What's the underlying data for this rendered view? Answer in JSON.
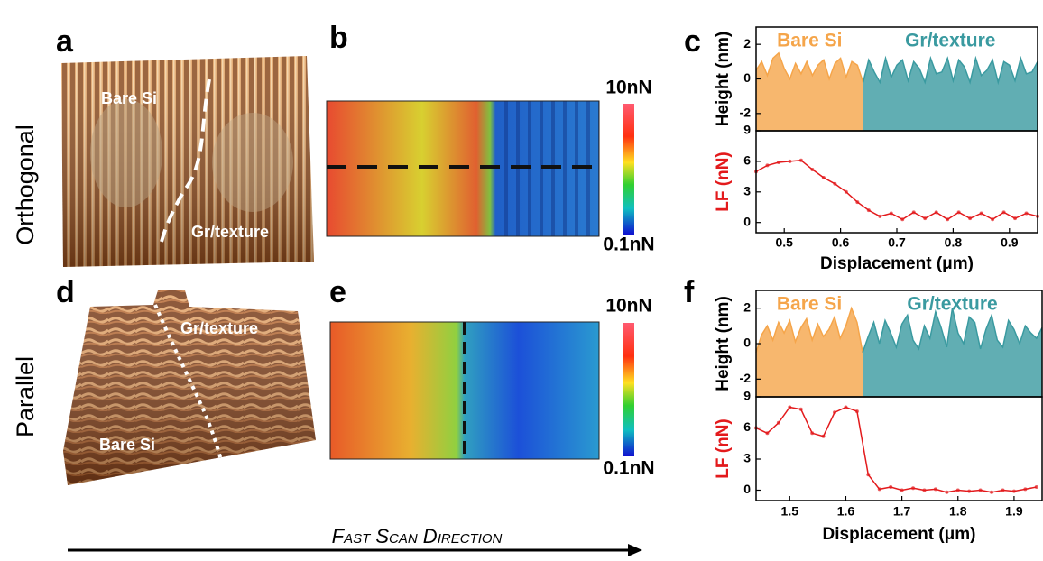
{
  "panel_labels": [
    "a",
    "b",
    "c",
    "d",
    "e",
    "f"
  ],
  "row_labels": [
    "Orthogonal",
    "Parallel"
  ],
  "images": [
    {
      "labels": [
        "Bare Si",
        "Gr/texture"
      ]
    },
    {
      "labels": [
        "Gr/texture",
        "Bare Si"
      ]
    }
  ],
  "force_maps": [
    {
      "max_label": "10nN",
      "min_label": "0.1nN"
    },
    {
      "max_label": "10nN",
      "min_label": "0.1nN"
    }
  ],
  "scan_direction": "Fast Scan Direction",
  "chart_data": [
    {
      "type": "area",
      "ylabel": "Height (nm)",
      "label_color": "#000000",
      "xlim": [
        0.45,
        0.95
      ],
      "ylim": [
        -3,
        3
      ],
      "yticks": [
        -2,
        0,
        2
      ],
      "series": [
        {
          "name": "Bare Si",
          "color": "#f5a54a",
          "x": [
            0.45,
            0.46,
            0.47,
            0.48,
            0.49,
            0.5,
            0.51,
            0.52,
            0.53,
            0.54,
            0.55,
            0.56,
            0.57,
            0.58,
            0.59,
            0.6,
            0.61,
            0.62,
            0.63,
            0.64
          ],
          "values": [
            0.5,
            1.0,
            0.2,
            1.2,
            1.5,
            0.6,
            0.0,
            0.9,
            0.3,
            1.0,
            0.2,
            0.8,
            1.1,
            0.0,
            0.9,
            1.2,
            0.1,
            1.0,
            0.8,
            -0.2
          ]
        },
        {
          "name": "Gr/texture",
          "color": "#3a9aa0",
          "x": [
            0.64,
            0.65,
            0.66,
            0.67,
            0.68,
            0.69,
            0.7,
            0.71,
            0.72,
            0.73,
            0.74,
            0.75,
            0.76,
            0.77,
            0.78,
            0.79,
            0.8,
            0.81,
            0.82,
            0.83,
            0.84,
            0.85,
            0.86,
            0.87,
            0.88,
            0.89,
            0.9,
            0.91,
            0.92,
            0.93,
            0.94,
            0.95
          ],
          "values": [
            -0.2,
            1.1,
            0.4,
            -0.2,
            1.2,
            0.1,
            0.8,
            1.1,
            -0.1,
            1.0,
            0.6,
            -0.2,
            1.2,
            0.3,
            0.4,
            1.2,
            -0.1,
            1.1,
            0.7,
            -0.2,
            1.2,
            0.2,
            0.5,
            1.1,
            -0.2,
            1.0,
            0.8,
            -0.1,
            1.2,
            0.3,
            0.4,
            1.0
          ]
        }
      ]
    },
    {
      "type": "line",
      "ylabel": "LF (nN)",
      "label_color": "#e31a1c",
      "xlabel": "Displacement (μm)",
      "color": "#e31a1c",
      "xlim": [
        0.45,
        0.95
      ],
      "xticks": [
        0.5,
        0.6,
        0.7,
        0.8,
        0.9
      ],
      "ylim": [
        -1,
        9
      ],
      "yticks": [
        0,
        3,
        6,
        9
      ],
      "x": [
        0.45,
        0.47,
        0.49,
        0.51,
        0.53,
        0.55,
        0.57,
        0.59,
        0.61,
        0.63,
        0.65,
        0.67,
        0.69,
        0.71,
        0.73,
        0.75,
        0.77,
        0.79,
        0.81,
        0.83,
        0.85,
        0.87,
        0.89,
        0.91,
        0.93,
        0.95
      ],
      "values": [
        5,
        5.6,
        5.9,
        6,
        6.1,
        5.2,
        4.4,
        3.8,
        3,
        2,
        1.2,
        0.6,
        0.9,
        0.3,
        1,
        0.4,
        1,
        0.3,
        1,
        0.4,
        0.9,
        0.3,
        1,
        0.4,
        0.9,
        0.6
      ]
    },
    {
      "type": "area",
      "ylabel": "Height (nm)",
      "label_color": "#000000",
      "xlim": [
        1.44,
        1.95
      ],
      "ylim": [
        -3,
        3
      ],
      "yticks": [
        -2,
        0,
        2
      ],
      "series": [
        {
          "name": "Bare Si",
          "color": "#f5a54a",
          "x": [
            1.44,
            1.45,
            1.46,
            1.47,
            1.48,
            1.49,
            1.5,
            1.51,
            1.52,
            1.53,
            1.54,
            1.55,
            1.56,
            1.57,
            1.58,
            1.59,
            1.6,
            1.61,
            1.62,
            1.63
          ],
          "values": [
            -0.5,
            0.5,
            1.0,
            0.2,
            1.2,
            0.6,
            1.3,
            0.1,
            0.9,
            1.4,
            0.2,
            1.1,
            0.4,
            0.8,
            1.5,
            0.3,
            1.0,
            2.0,
            1.2,
            -0.5
          ]
        },
        {
          "name": "Gr/texture",
          "color": "#3a9aa0",
          "x": [
            1.63,
            1.64,
            1.65,
            1.66,
            1.67,
            1.68,
            1.69,
            1.7,
            1.71,
            1.72,
            1.73,
            1.74,
            1.75,
            1.76,
            1.77,
            1.78,
            1.79,
            1.8,
            1.81,
            1.82,
            1.83,
            1.84,
            1.85,
            1.86,
            1.87,
            1.88,
            1.89,
            1.9,
            1.91,
            1.92,
            1.93,
            1.94,
            1.95
          ],
          "values": [
            -0.5,
            0.4,
            1.2,
            0.0,
            1.3,
            0.6,
            -0.2,
            1.1,
            1.6,
            0.2,
            -0.3,
            1.0,
            0.3,
            1.8,
            0.9,
            -0.2,
            2.0,
            0.6,
            0.0,
            1.5,
            1.2,
            -0.3,
            0.8,
            1.6,
            0.2,
            -0.2,
            1.3,
            0.8,
            0.0,
            1.0,
            0.6,
            0.3,
            0.9
          ]
        }
      ]
    },
    {
      "type": "line",
      "ylabel": "LF (nN)",
      "label_color": "#e31a1c",
      "xlabel": "Displacement (μm)",
      "color": "#e31a1c",
      "xlim": [
        1.44,
        1.95
      ],
      "xticks": [
        1.5,
        1.6,
        1.7,
        1.8,
        1.9
      ],
      "ylim": [
        -1,
        9
      ],
      "yticks": [
        0,
        3,
        6,
        9
      ],
      "x": [
        1.44,
        1.46,
        1.48,
        1.5,
        1.52,
        1.54,
        1.56,
        1.58,
        1.6,
        1.62,
        1.64,
        1.66,
        1.68,
        1.7,
        1.72,
        1.74,
        1.76,
        1.78,
        1.8,
        1.82,
        1.84,
        1.86,
        1.88,
        1.9,
        1.92,
        1.94
      ],
      "values": [
        6,
        5.5,
        6.5,
        8,
        7.8,
        5.5,
        5.2,
        7.5,
        8,
        7.6,
        1.5,
        0.1,
        0.3,
        0,
        0.2,
        0,
        0.1,
        -0.2,
        0,
        -0.1,
        0,
        -0.2,
        0,
        -0.1,
        0.1,
        0.3
      ]
    }
  ]
}
